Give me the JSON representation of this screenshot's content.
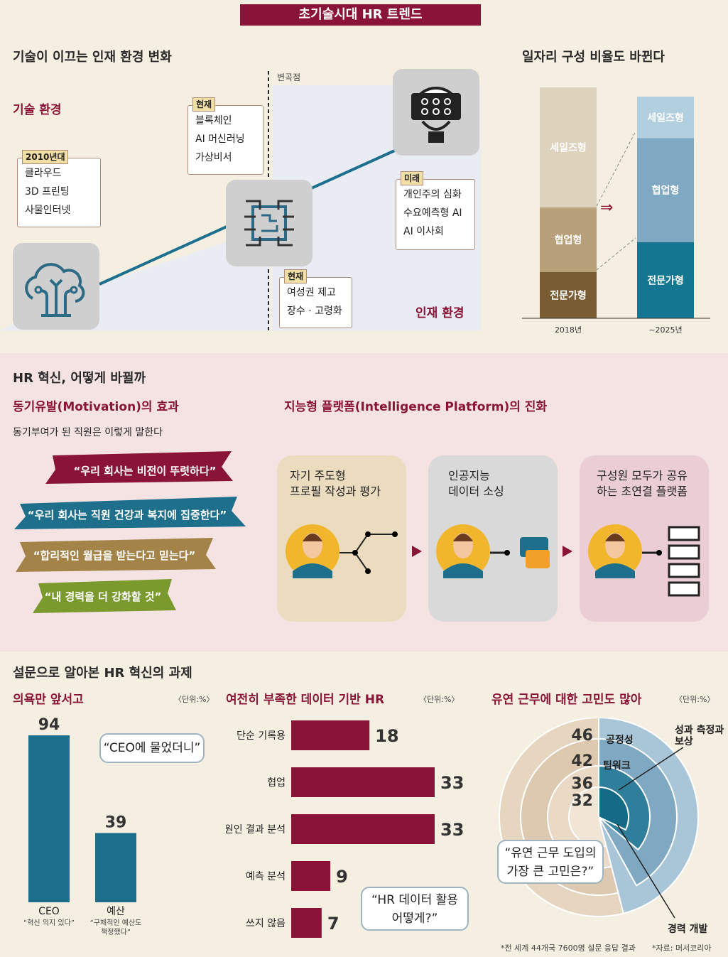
{
  "header": {
    "title": "초기술시대 HR 트렌드"
  },
  "top": {
    "left_title": "기술이 이끄는 인재 환경 변화",
    "tech_label": "기술 환경",
    "talent_label": "인재 환경",
    "inflection": "변곡점",
    "box_2010": {
      "tag": "2010년대",
      "items": [
        "클라우드",
        "3D 프린팅",
        "사물인터넷"
      ]
    },
    "box_now_tech": {
      "tag": "현재",
      "items": [
        "블록체인",
        "AI 머신러닝",
        "가상비서"
      ]
    },
    "box_future": {
      "tag": "미래",
      "items": [
        "개인주의 심화",
        "수요예측형 AI",
        "AI 이사회"
      ]
    },
    "box_now_talent": {
      "tag": "현재",
      "items": [
        "여성권 제고",
        "장수 · 고령화"
      ]
    }
  },
  "right_top": {
    "title": "일자리 구성 비율도 바뀐다",
    "arrow": "⇒"
  },
  "job_chart": {
    "type": "bar",
    "categories": [
      "2018년",
      "~2025년"
    ],
    "series": [
      {
        "name": "전문가형",
        "values": [
          20,
          33
        ]
      },
      {
        "name": "협업형",
        "values": [
          28,
          45
        ]
      },
      {
        "name": "세일즈형",
        "values": [
          52,
          18
        ]
      }
    ],
    "colors": [
      "#7a5c32",
      "#b8a07a",
      "#ddd2bb",
      "#147690",
      "#7fa8c2",
      "#b2cfe0"
    ]
  },
  "mid": {
    "title": "HR 혁신, 어떻게 바뀔까",
    "left_h": "동기유발(Motivation)의 효과",
    "left_sub": "동기부여가 된 직원은 이렇게 말한다",
    "quotes": [
      "“우리 회사는 비전이 뚜렷하다”",
      "“우리 회사는 직원 건강과 복지에 집중한다”",
      "“합리적인 월급을 받는다고 믿는다”",
      "“내 경력을 더 강화할 것”"
    ],
    "right_h": "지능형 플랫폼(Intelligence Platform)의 진화",
    "cards": [
      "자기 주도형\n프로필 작성과 평가",
      "인공지능\n데이터 소싱",
      "구성원 모두가 공유\n하는 초연결 플랫폼"
    ]
  },
  "bottom": {
    "title": "설문으로 알아본 HR 혁신의 과제",
    "unit": "〈단위:%〉",
    "footnote": "*전 세계 44개국 7600명 설문 응답 결과",
    "source": "*자료: 머서코리아"
  },
  "chart_data": [
    {
      "type": "bar",
      "title": "의욕만 앞서고",
      "categories": [
        "CEO",
        "예산"
      ],
      "subcaptions": [
        "“혁신 의지 있다”",
        "“구체적인 예산도\n책정했다”"
      ],
      "values": [
        94,
        39
      ],
      "bubble": "“CEO에 물었더니”"
    },
    {
      "type": "bar",
      "title": "여전히 부족한 데이터 기반 HR",
      "categories": [
        "단순 기록용",
        "협업",
        "원인 결과 분석",
        "예측 분석",
        "쓰지 않음"
      ],
      "values": [
        18,
        33,
        33,
        9,
        7
      ],
      "bubble": "“HR 데이터 활용\n어떻게?”"
    },
    {
      "type": "pie",
      "title": "유연 근무에 대한 고민도 많아",
      "categories": [
        "공정성",
        "팀워크",
        "성과 측정과\n보상",
        "경력 개발"
      ],
      "values": [
        46,
        42,
        36,
        32
      ],
      "bubble": "“유연 근무 도입의\n가장 큰 고민은?”"
    }
  ]
}
